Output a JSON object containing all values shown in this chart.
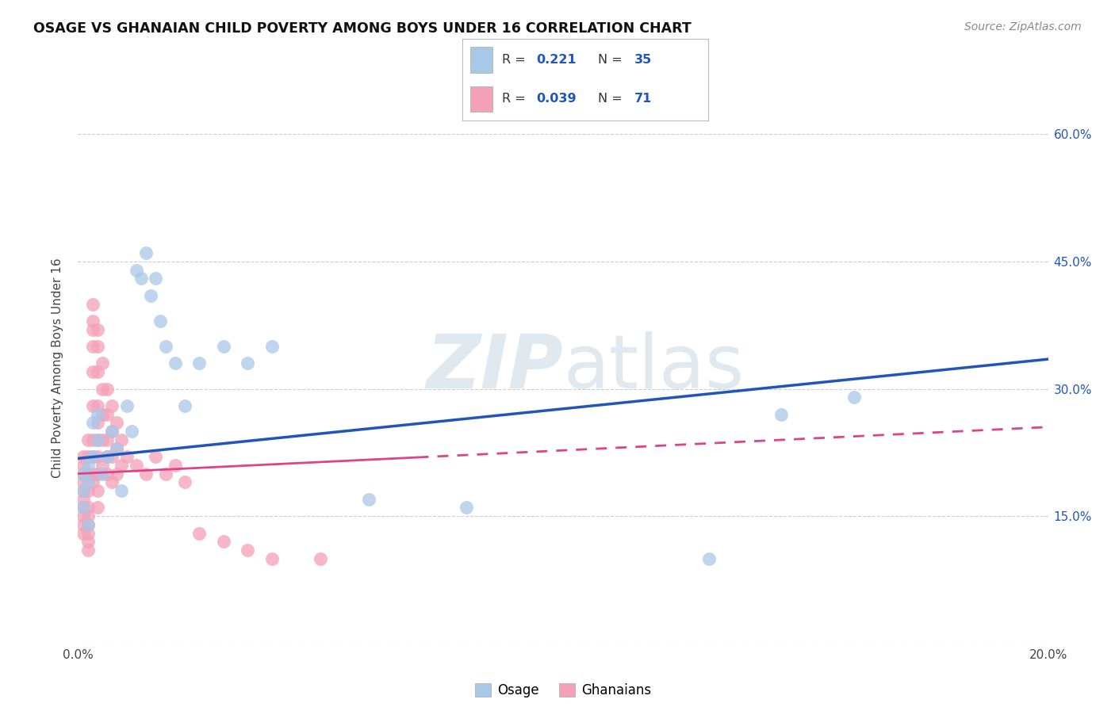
{
  "title": "OSAGE VS GHANAIAN CHILD POVERTY AMONG BOYS UNDER 16 CORRELATION CHART",
  "source": "Source: ZipAtlas.com",
  "ylabel": "Child Poverty Among Boys Under 16",
  "xlim": [
    0.0,
    0.2
  ],
  "ylim": [
    0.0,
    0.65
  ],
  "xticks": [
    0.0,
    0.04,
    0.08,
    0.12,
    0.16,
    0.2
  ],
  "yticks": [
    0.0,
    0.15,
    0.3,
    0.45,
    0.6
  ],
  "ytick_labels_right": [
    "",
    "15.0%",
    "30.0%",
    "45.0%",
    "60.0%"
  ],
  "xtick_labels": [
    "0.0%",
    "",
    "",
    "",
    "",
    "20.0%"
  ],
  "blue_color": "#a8c8e8",
  "pink_color": "#f4a0b8",
  "blue_line_color": "#2255bb",
  "pink_line_color": "#dd4488",
  "legend_r_blue": "0.221",
  "legend_n_blue": "35",
  "legend_r_pink": "0.039",
  "legend_n_pink": "71",
  "legend_label_blue": "Osage",
  "legend_label_pink": "Ghanaians",
  "osage_x": [
    0.001,
    0.001,
    0.001,
    0.002,
    0.002,
    0.002,
    0.003,
    0.003,
    0.004,
    0.004,
    0.005,
    0.006,
    0.007,
    0.008,
    0.009,
    0.01,
    0.011,
    0.012,
    0.013,
    0.014,
    0.015,
    0.016,
    0.017,
    0.018,
    0.02,
    0.022,
    0.025,
    0.03,
    0.035,
    0.04,
    0.06,
    0.08,
    0.13,
    0.145,
    0.16
  ],
  "osage_y": [
    0.2,
    0.18,
    0.16,
    0.21,
    0.19,
    0.14,
    0.22,
    0.26,
    0.24,
    0.27,
    0.2,
    0.22,
    0.25,
    0.23,
    0.18,
    0.28,
    0.25,
    0.44,
    0.43,
    0.46,
    0.41,
    0.43,
    0.38,
    0.35,
    0.33,
    0.28,
    0.33,
    0.35,
    0.33,
    0.35,
    0.17,
    0.16,
    0.1,
    0.27,
    0.29
  ],
  "ghanaian_x": [
    0.001,
    0.001,
    0.001,
    0.001,
    0.001,
    0.001,
    0.001,
    0.001,
    0.001,
    0.001,
    0.002,
    0.002,
    0.002,
    0.002,
    0.002,
    0.002,
    0.002,
    0.002,
    0.002,
    0.002,
    0.003,
    0.003,
    0.003,
    0.003,
    0.003,
    0.003,
    0.003,
    0.003,
    0.003,
    0.003,
    0.004,
    0.004,
    0.004,
    0.004,
    0.004,
    0.004,
    0.004,
    0.004,
    0.004,
    0.004,
    0.005,
    0.005,
    0.005,
    0.005,
    0.005,
    0.006,
    0.006,
    0.006,
    0.006,
    0.006,
    0.007,
    0.007,
    0.007,
    0.007,
    0.008,
    0.008,
    0.008,
    0.009,
    0.009,
    0.01,
    0.012,
    0.014,
    0.016,
    0.018,
    0.02,
    0.022,
    0.025,
    0.03,
    0.035,
    0.04,
    0.05
  ],
  "ghanaian_y": [
    0.21,
    0.19,
    0.22,
    0.18,
    0.2,
    0.17,
    0.16,
    0.15,
    0.14,
    0.13,
    0.22,
    0.24,
    0.2,
    0.18,
    0.16,
    0.15,
    0.14,
    0.13,
    0.12,
    0.11,
    0.35,
    0.37,
    0.4,
    0.38,
    0.32,
    0.28,
    0.24,
    0.22,
    0.2,
    0.19,
    0.37,
    0.35,
    0.32,
    0.28,
    0.26,
    0.24,
    0.22,
    0.2,
    0.18,
    0.16,
    0.33,
    0.3,
    0.27,
    0.24,
    0.21,
    0.3,
    0.27,
    0.24,
    0.22,
    0.2,
    0.28,
    0.25,
    0.22,
    0.19,
    0.26,
    0.23,
    0.2,
    0.24,
    0.21,
    0.22,
    0.21,
    0.2,
    0.22,
    0.2,
    0.21,
    0.19,
    0.13,
    0.12,
    0.11,
    0.1,
    0.1
  ],
  "background_color": "#ffffff",
  "grid_color": "#cccccc",
  "watermark_color": "#e0e8f0"
}
